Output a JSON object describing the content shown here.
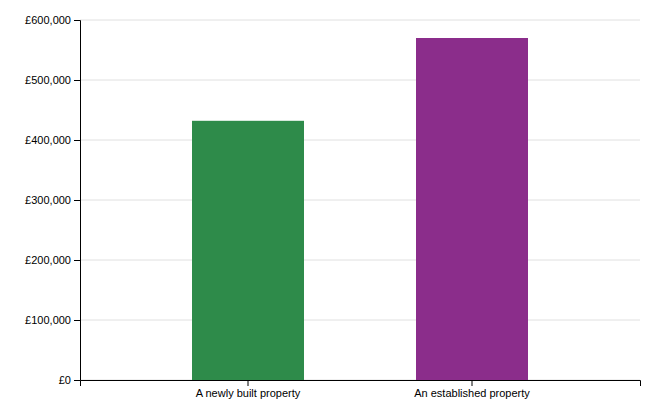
{
  "chart_data": {
    "type": "bar",
    "categories": [
      "A newly built property",
      "An established property"
    ],
    "values": [
      432000,
      570000
    ],
    "colors": [
      "#2e8b4a",
      "#8b2d8b"
    ],
    "ylim": [
      0,
      600000
    ],
    "yticks": [
      {
        "value": 0,
        "label": "£0"
      },
      {
        "value": 100000,
        "label": "£100,000"
      },
      {
        "value": 200000,
        "label": "£200,000"
      },
      {
        "value": 300000,
        "label": "£300,000"
      },
      {
        "value": 400000,
        "label": "£400,000"
      },
      {
        "value": 500000,
        "label": "£500,000"
      },
      {
        "value": 600000,
        "label": "£600,000"
      }
    ],
    "grid": true
  }
}
